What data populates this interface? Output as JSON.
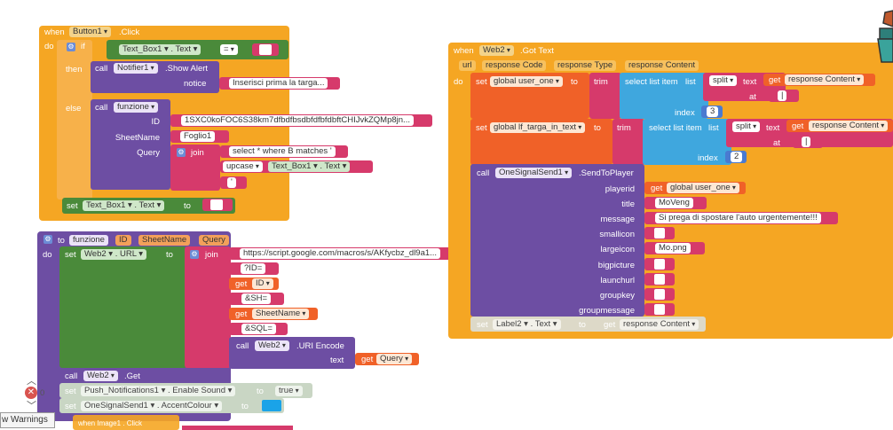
{
  "left": {
    "event": {
      "when": "when",
      "component": "Button1",
      "event": ".Click",
      "do": "do"
    },
    "if": {
      "label": "if",
      "textbox": "Text_Box1",
      "prop": "Text",
      "op": "=",
      "then": "then",
      "else": "else"
    },
    "alert": {
      "call": "call",
      "component": "Notifier1",
      "method": ".Show Alert",
      "param": "notice",
      "text": "Inserisci prima la targa..."
    },
    "funz_call": {
      "call": "call",
      "name": "funzione",
      "p_id": "ID",
      "p_sheet": "SheetName",
      "p_query": "Query",
      "id_value": "1SXC0koFOC6S38km7dfbdfbsdbfdfbfdbftCHIJvkZQMp8jn...",
      "sheet_value": "Foglio1",
      "join": "join",
      "query_text": "select * where B matches '",
      "upcase": "upcase",
      "textbox": "Text_Box1",
      "prop": "Text",
      "quote": "'"
    },
    "set_tb": {
      "set": "set",
      "component": "Text_Box1",
      "prop": "Text",
      "to": "to"
    },
    "proc": {
      "to": "to",
      "name": "funzione",
      "args": [
        "ID",
        "SheetName",
        "Query"
      ],
      "do": "do"
    },
    "set_url": {
      "set": "set",
      "component": "Web2",
      "prop": "URL",
      "to": "to",
      "join": "join",
      "url": "https://script.google.com/macros/s/AKfycbz_dl9a1...",
      "p1": "?ID=",
      "get": "get",
      "g1": "ID",
      "p2": "&SH=",
      "g2": "SheetName",
      "p3": "&SQL=",
      "encode_call": "call",
      "encode_comp": "Web2",
      "encode_method": ".URI Encode",
      "text_param": "text",
      "g3": "Query"
    },
    "web_get": {
      "call": "call",
      "component": "Web2",
      "method": ".Get"
    },
    "set_push": {
      "set": "set",
      "component": "Push_Notifications1",
      "prop": "Enable Sound",
      "to": "to",
      "value": "true"
    },
    "set_accent": {
      "set": "set",
      "component": "OneSignalSend1",
      "prop": "AccentColour",
      "to": "to"
    },
    "cut": "when  Image1 . Click"
  },
  "right": {
    "event": {
      "when": "when",
      "component": "Web2",
      "event": ".Got Text",
      "do": "do",
      "params": [
        "url",
        "response Code",
        "response Type",
        "response Content"
      ]
    },
    "set1": {
      "set": "set",
      "var": "global user_one",
      "to": "to",
      "trim": "trim",
      "select": "select list item",
      "list": "list",
      "split": "split",
      "text": "text",
      "get": "get",
      "content": "response Content",
      "at": "at",
      "index": "index",
      "sep": "|",
      "index_value": "3"
    },
    "set2": {
      "set": "set",
      "var": "global lf_targa_in_text",
      "to": "to",
      "trim": "trim",
      "select": "select list item",
      "list": "list",
      "split": "split",
      "text": "text",
      "get": "get",
      "content": "response Content",
      "at": "at",
      "index": "index",
      "sep": "|",
      "index_value": "2"
    },
    "send": {
      "call": "call",
      "component": "OneSignalSend1",
      "method": ".SendToPlayer",
      "params": [
        "playerid",
        "title",
        "message",
        "smallicon",
        "largeicon",
        "bigpicture",
        "launchurl",
        "groupkey",
        "groupmessage"
      ],
      "get": "get",
      "playerid_value": "global user_one",
      "title_value": "MoVeng",
      "message_value": "Si prega di spostare l'auto urgentemente!!!",
      "largeicon_value": "Mo.png"
    },
    "set_label": {
      "set": "set",
      "component": "Label2",
      "prop": "Text",
      "to": "to",
      "get": "get",
      "content": "response Content"
    }
  },
  "workspace": {
    "error_count": "0",
    "warnings": "w Warnings"
  },
  "colors": {
    "event": "#f5a623",
    "control": "#5c9e47",
    "procedure": "#6d4ea3",
    "text": "#d63a6b",
    "variable": "#f06128",
    "list": "#6cb6e0",
    "math": "#4a7ad0",
    "component": "#4a8a3a",
    "accent": "#1aa3e8"
  }
}
